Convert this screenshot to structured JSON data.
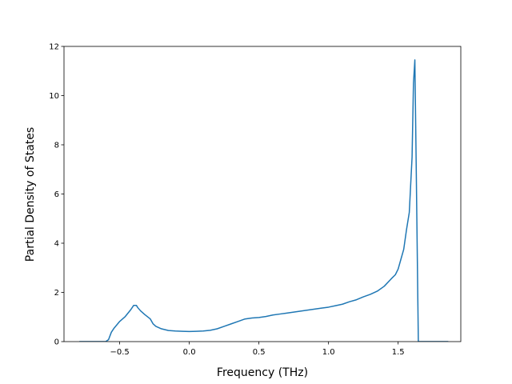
{
  "chart_data": {
    "type": "line",
    "title": "",
    "xlabel": "Frequency (THz)",
    "ylabel": "Partial Density of States",
    "xlim": [
      -0.9,
      1.95
    ],
    "ylim": [
      0,
      12
    ],
    "xticks": [
      -0.5,
      0.0,
      0.5,
      1.0,
      1.5
    ],
    "xtick_labels": [
      "−0.5",
      "0.0",
      "0.5",
      "1.0",
      "1.5"
    ],
    "yticks": [
      0,
      2,
      4,
      6,
      8,
      10,
      12
    ],
    "ytick_labels": [
      "0",
      "2",
      "4",
      "6",
      "8",
      "10",
      "12"
    ],
    "grid": false,
    "legend": "none",
    "series": [
      {
        "color": "#1f77b4",
        "x": [
          -0.79,
          -0.6,
          -0.58,
          -0.56,
          -0.54,
          -0.5,
          -0.46,
          -0.42,
          -0.4,
          -0.38,
          -0.37,
          -0.35,
          -0.32,
          -0.28,
          -0.26,
          -0.24,
          -0.2,
          -0.15,
          -0.1,
          -0.05,
          0.0,
          0.05,
          0.1,
          0.15,
          0.2,
          0.25,
          0.3,
          0.35,
          0.4,
          0.45,
          0.5,
          0.55,
          0.6,
          0.65,
          0.7,
          0.75,
          0.8,
          0.85,
          0.9,
          0.95,
          1.0,
          1.05,
          1.1,
          1.15,
          1.2,
          1.25,
          1.3,
          1.35,
          1.4,
          1.45,
          1.48,
          1.5,
          1.52,
          1.54,
          1.56,
          1.58,
          1.6,
          1.61,
          1.62,
          1.63,
          1.645,
          1.7,
          1.86
        ],
        "y": [
          0.0,
          0.0,
          0.08,
          0.38,
          0.55,
          0.82,
          1.02,
          1.3,
          1.47,
          1.47,
          1.38,
          1.25,
          1.1,
          0.92,
          0.72,
          0.62,
          0.52,
          0.45,
          0.43,
          0.42,
          0.41,
          0.42,
          0.43,
          0.46,
          0.52,
          0.62,
          0.72,
          0.82,
          0.92,
          0.96,
          0.98,
          1.02,
          1.08,
          1.12,
          1.16,
          1.2,
          1.24,
          1.28,
          1.32,
          1.36,
          1.4,
          1.46,
          1.52,
          1.62,
          1.7,
          1.82,
          1.92,
          2.05,
          2.25,
          2.55,
          2.72,
          2.95,
          3.35,
          3.75,
          4.55,
          5.25,
          7.5,
          10.5,
          11.45,
          7.0,
          0.0,
          0.0,
          0.0
        ]
      }
    ]
  }
}
